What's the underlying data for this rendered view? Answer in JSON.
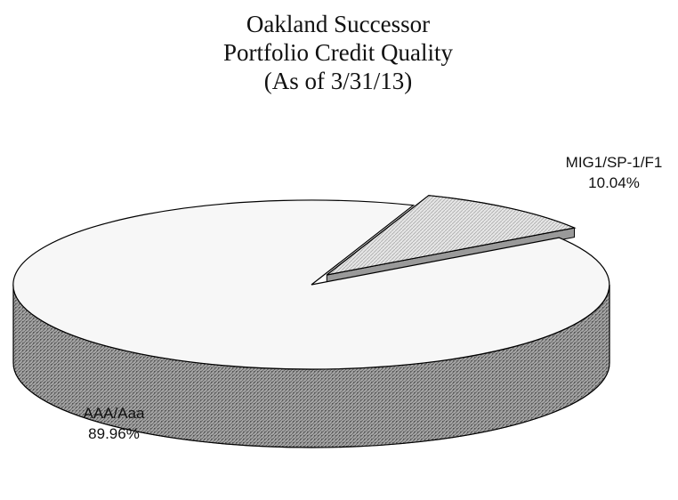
{
  "chart_data": {
    "type": "pie",
    "title": [
      "Oakland Successor",
      "Portfolio Credit Quality",
      "(As of 3/31/13)"
    ],
    "categories": [
      "MIG1/SP-1/F1",
      "AAA/Aaa"
    ],
    "values": [
      10.04,
      89.96
    ],
    "value_labels": [
      "10.04%",
      "89.96%"
    ],
    "colors": [
      "#d6d6d6",
      "#f7f7f7"
    ],
    "side_colors": [
      "#9a9a9a",
      "#8c8c8c"
    ]
  }
}
